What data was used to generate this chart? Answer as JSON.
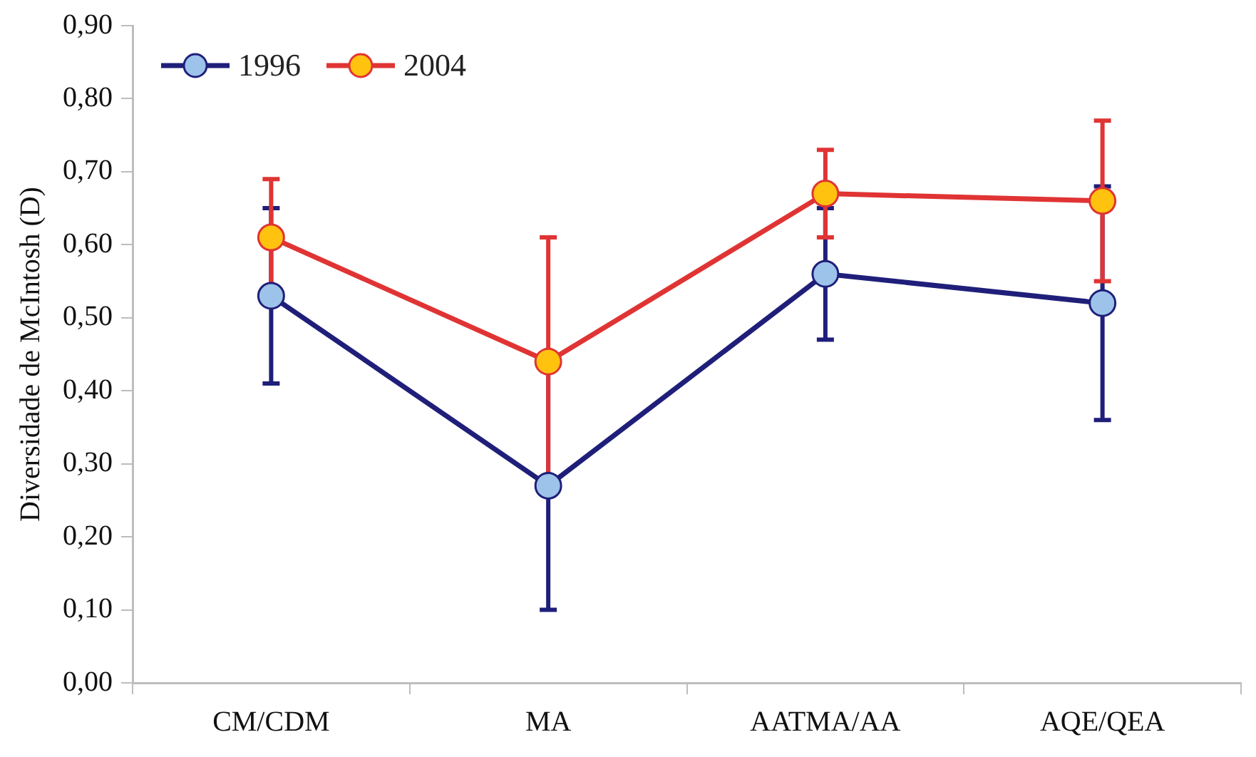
{
  "chart_data": {
    "type": "line",
    "ylabel": "Diversidade de McIntosh (D)",
    "categories": [
      "CM/CDM",
      "MA",
      "AATMA/AA",
      "AQE/QEA"
    ],
    "series": [
      {
        "name": "1996",
        "color": "#1f1f7a",
        "values": [
          0.53,
          0.27,
          0.56,
          0.52
        ],
        "errors": [
          0.12,
          0.17,
          0.09,
          0.16
        ]
      },
      {
        "name": "2004",
        "color": "#e03434",
        "values": [
          0.61,
          0.44,
          0.67,
          0.66
        ],
        "errors": [
          0.08,
          0.17,
          0.06,
          0.11
        ]
      }
    ],
    "ylim": [
      0,
      0.9
    ],
    "yticks": [
      {
        "value": 0,
        "label": "0,00"
      },
      {
        "value": 0.1,
        "label": "0,10"
      },
      {
        "value": 0.2,
        "label": "0,20"
      },
      {
        "value": 0.3,
        "label": "0,30"
      },
      {
        "value": 0.4,
        "label": "0,40"
      },
      {
        "value": 0.5,
        "label": "0,50"
      },
      {
        "value": 0.6,
        "label": "0,60"
      },
      {
        "value": 0.7,
        "label": "0,70"
      },
      {
        "value": 0.8,
        "label": "0,80"
      },
      {
        "value": 0.9,
        "label": "0,90"
      }
    ],
    "grid": false,
    "legend": "top left",
    "marker": "circle",
    "line_style": "solid"
  }
}
